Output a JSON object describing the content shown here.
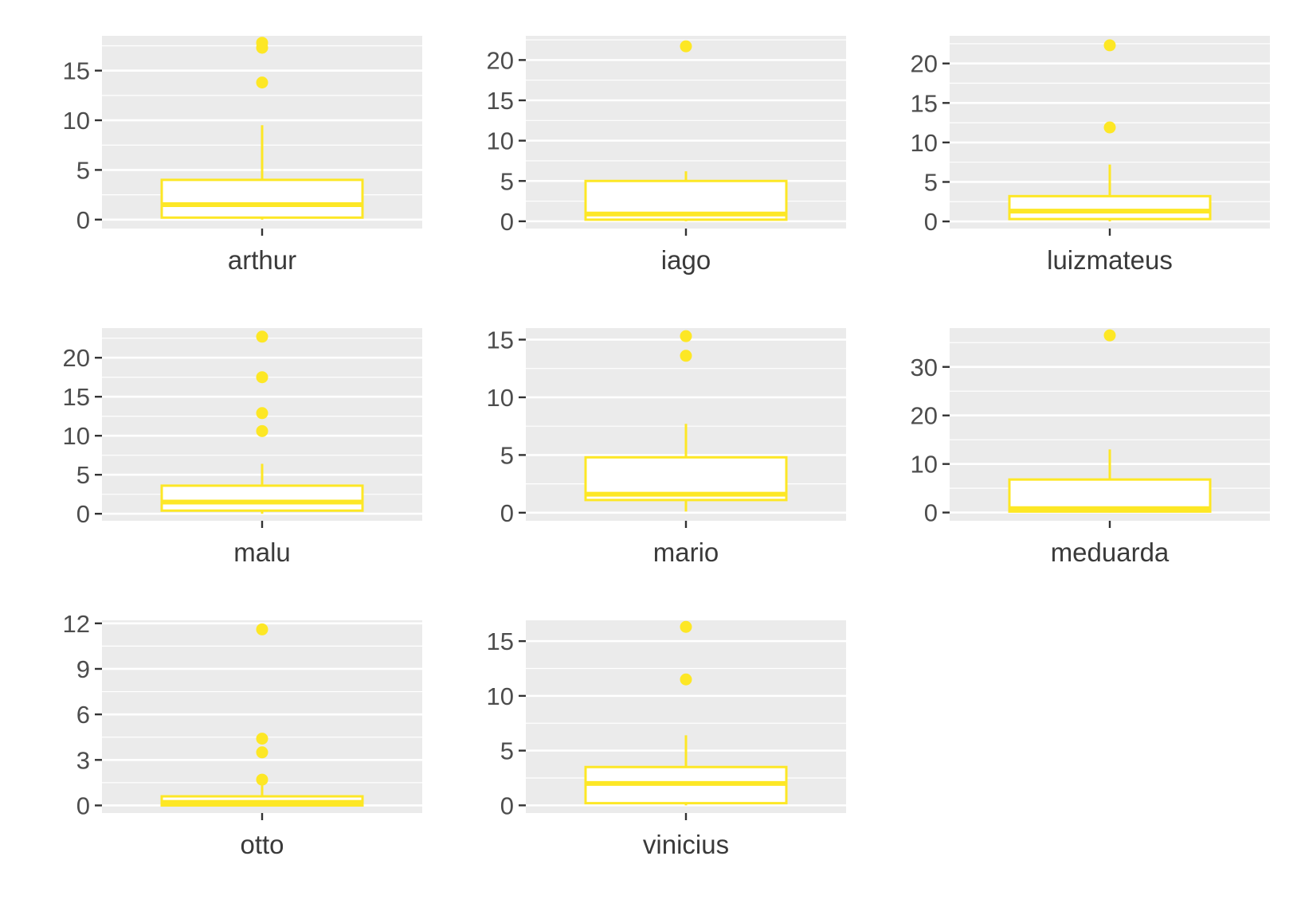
{
  "chart_data": {
    "type": "boxplot",
    "layout": "facet-grid 3x3",
    "box_color": "#FDE725",
    "panel_bg": "#EBEBEB",
    "panels": [
      {
        "category": "arthur",
        "ylim": [
          -0.9,
          18.5
        ],
        "ticks": [
          0,
          5,
          10,
          15
        ],
        "stats": {
          "q1": 0.2,
          "median": 1.5,
          "q3": 4.0,
          "whisker_low": 0.0,
          "whisker_high": 9.5
        },
        "outliers": [
          13.8,
          17.3,
          17.8
        ]
      },
      {
        "category": "iago",
        "ylim": [
          -0.9,
          23.0
        ],
        "ticks": [
          0,
          5,
          10,
          15,
          20
        ],
        "stats": {
          "q1": 0.2,
          "median": 0.9,
          "q3": 5.0,
          "whisker_low": 0.0,
          "whisker_high": 6.2
        },
        "outliers": [
          21.7
        ]
      },
      {
        "category": "luizmateus",
        "ylim": [
          -0.9,
          23.5
        ],
        "ticks": [
          0,
          5,
          10,
          15,
          20
        ],
        "stats": {
          "q1": 0.3,
          "median": 1.3,
          "q3": 3.2,
          "whisker_low": 0.0,
          "whisker_high": 7.2
        },
        "outliers": [
          11.9,
          22.3
        ]
      },
      {
        "category": "malu",
        "ylim": [
          -0.9,
          23.8
        ],
        "ticks": [
          0,
          5,
          10,
          15,
          20
        ],
        "stats": {
          "q1": 0.4,
          "median": 1.5,
          "q3": 3.6,
          "whisker_low": 0.0,
          "whisker_high": 6.4
        },
        "outliers": [
          10.6,
          12.9,
          17.5,
          22.7
        ]
      },
      {
        "category": "mario",
        "ylim": [
          -0.7,
          16.0
        ],
        "ticks": [
          0,
          5,
          10,
          15
        ],
        "stats": {
          "q1": 1.1,
          "median": 1.6,
          "q3": 4.8,
          "whisker_low": 0.1,
          "whisker_high": 7.7
        },
        "outliers": [
          13.6,
          15.3
        ]
      },
      {
        "category": "meduarda",
        "ylim": [
          -1.7,
          38.0
        ],
        "ticks": [
          0,
          10,
          20,
          30
        ],
        "stats": {
          "q1": 0.2,
          "median": 0.8,
          "q3": 6.8,
          "whisker_low": 0.0,
          "whisker_high": 13.0
        },
        "outliers": [
          36.5
        ]
      },
      {
        "category": "otto",
        "ylim": [
          -0.5,
          12.2
        ],
        "ticks": [
          0,
          3,
          6,
          9,
          12
        ],
        "stats": {
          "q1": 0.0,
          "median": 0.2,
          "q3": 0.6,
          "whisker_low": 0.0,
          "whisker_high": 1.4
        },
        "outliers": [
          1.7,
          3.5,
          4.4,
          11.6
        ]
      },
      {
        "category": "vinicius",
        "ylim": [
          -0.7,
          16.9
        ],
        "ticks": [
          0,
          5,
          10,
          15
        ],
        "stats": {
          "q1": 0.2,
          "median": 2.0,
          "q3": 3.5,
          "whisker_low": 0.0,
          "whisker_high": 6.4
        },
        "outliers": [
          11.5,
          16.3
        ]
      }
    ]
  }
}
